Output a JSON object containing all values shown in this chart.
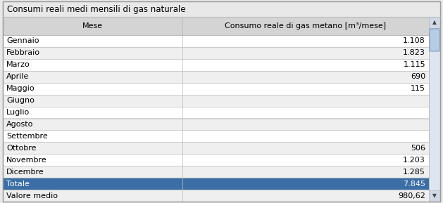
{
  "title": "Consumi reali medi mensili di gas naturale",
  "col1_header": "Mese",
  "col2_header": "Consumo reale di gas metano [m³/mese]",
  "rows": [
    [
      "Gennaio",
      "1.108"
    ],
    [
      "Febbraio",
      "1.823"
    ],
    [
      "Marzo",
      "1.115"
    ],
    [
      "Aprile",
      "690"
    ],
    [
      "Maggio",
      "115"
    ],
    [
      "Giugno",
      ""
    ],
    [
      "Luglio",
      ""
    ],
    [
      "Agosto",
      ""
    ],
    [
      "Settembre",
      ""
    ],
    [
      "Ottobre",
      "506"
    ],
    [
      "Novembre",
      "1.203"
    ],
    [
      "Dicembre",
      "1.285"
    ],
    [
      "Totale",
      "7.845"
    ],
    [
      "Valore medio",
      "980,62"
    ]
  ],
  "highlight_row": "Totale",
  "highlight_bg": "#3a6ea5",
  "highlight_text_color": "#ffffff",
  "header_bg": "#d4d4d4",
  "header_text_color": "#000000",
  "row_bg_white": "#ffffff",
  "row_bg_gray": "#efefef",
  "border_color": "#bbbbbb",
  "title_color": "#000000",
  "title_fontsize": 8.5,
  "header_fontsize": 8.0,
  "row_fontsize": 8.0,
  "outer_bg": "#e8e8e8",
  "scrollbar_track": "#e0e0e0",
  "scrollbar_thumb": "#b8cce4",
  "scrollbar_thumb_border": "#7a9cc0"
}
